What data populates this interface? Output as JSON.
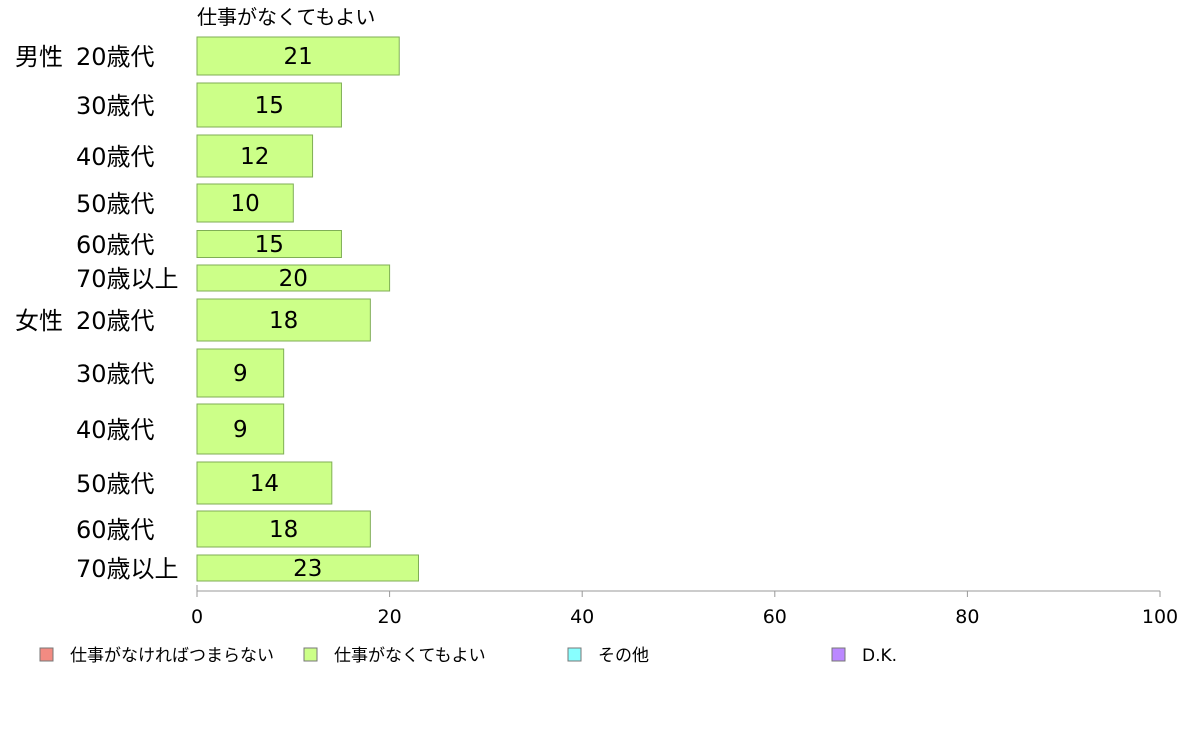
{
  "chart_data": {
    "type": "bar",
    "orientation": "horizontal",
    "stacked": true,
    "series_title": "仕事がなくてもよい",
    "groups": [
      {
        "label": "男性",
        "categories": [
          "20歳代",
          "30歳代",
          "40歳代",
          "50歳代",
          "60歳代",
          "70歳以上"
        ]
      },
      {
        "label": "女性",
        "categories": [
          "20歳代",
          "30歳代",
          "40歳代",
          "50歳代",
          "60歳代",
          "70歳以上"
        ]
      }
    ],
    "series": [
      {
        "name": "仕事がなくてもよい",
        "color": "#ccff88",
        "values": [
          21,
          15,
          12,
          10,
          15,
          20,
          18,
          9,
          9,
          14,
          18,
          23
        ]
      }
    ],
    "xlim": [
      0,
      100
    ],
    "xticks": [
      0,
      20,
      40,
      60,
      80,
      100
    ],
    "grid": false,
    "legend_position": "bottom",
    "legend": [
      {
        "label": "仕事がなければつまらない",
        "color": "#f28b82"
      },
      {
        "label": "仕事がなくてもよい",
        "color": "#ccff88"
      },
      {
        "label": "その他",
        "color": "#88ffff"
      },
      {
        "label": "D.K.",
        "color": "#bb88ff"
      }
    ]
  }
}
